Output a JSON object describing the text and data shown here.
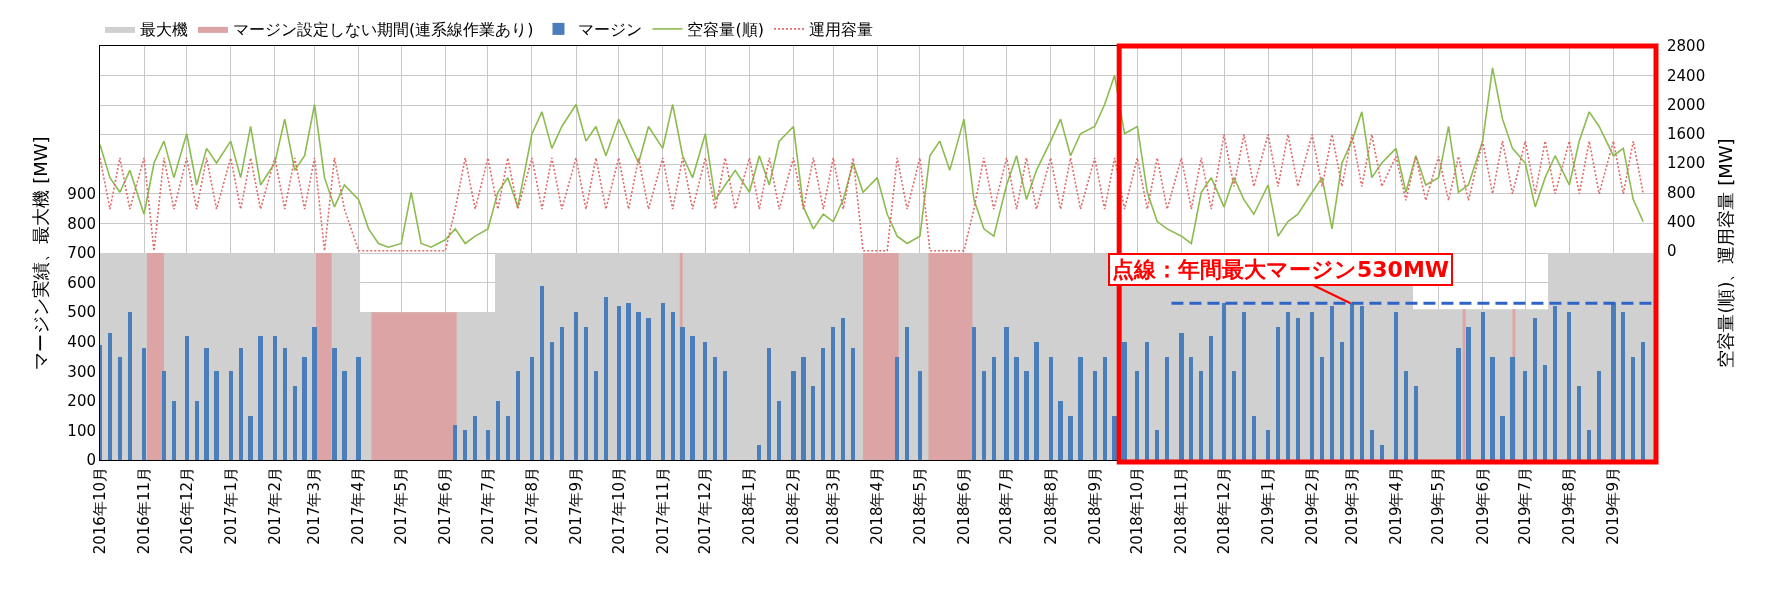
{
  "chart_data": {
    "type": "bar",
    "xlabel": null,
    "ylabel": "マージン実績、最大機 [MW]",
    "y2label": "空容量(順)、運用容量 [MW]",
    "xlim": [
      "2016-10-01",
      "2019-10-01"
    ],
    "xticks": [
      {
        "value": "2016-10-01",
        "label": "2016年10月"
      },
      {
        "value": "2016-11-01",
        "label": "2016年11月"
      },
      {
        "value": "2016-12-01",
        "label": "2016年12月"
      },
      {
        "value": "2017-01-01",
        "label": "2017年1月"
      },
      {
        "value": "2017-02-01",
        "label": "2017年2月"
      },
      {
        "value": "2017-03-01",
        "label": "2017年3月"
      },
      {
        "value": "2017-04-01",
        "label": "2017年4月"
      },
      {
        "value": "2017-05-01",
        "label": "2017年5月"
      },
      {
        "value": "2017-06-01",
        "label": "2017年6月"
      },
      {
        "value": "2017-07-01",
        "label": "2017年7月"
      },
      {
        "value": "2017-08-01",
        "label": "2017年8月"
      },
      {
        "value": "2017-09-01",
        "label": "2017年9月"
      },
      {
        "value": "2017-10-01",
        "label": "2017年10月"
      },
      {
        "value": "2017-11-01",
        "label": "2017年11月"
      },
      {
        "value": "2017-12-01",
        "label": "2017年12月"
      },
      {
        "value": "2018-01-01",
        "label": "2018年1月"
      },
      {
        "value": "2018-02-01",
        "label": "2018年2月"
      },
      {
        "value": "2018-03-01",
        "label": "2018年3月"
      },
      {
        "value": "2018-04-01",
        "label": "2018年4月"
      },
      {
        "value": "2018-05-01",
        "label": "2018年5月"
      },
      {
        "value": "2018-06-01",
        "label": "2018年6月"
      },
      {
        "value": "2018-07-01",
        "label": "2018年7月"
      },
      {
        "value": "2018-08-01",
        "label": "2018年8月"
      },
      {
        "value": "2018-09-01",
        "label": "2018年9月"
      },
      {
        "value": "2018-10-01",
        "label": "2018年10月"
      },
      {
        "value": "2018-11-01",
        "label": "2018年11月"
      },
      {
        "value": "2018-12-01",
        "label": "2018年12月"
      },
      {
        "value": "2019-01-01",
        "label": "2019年1月"
      },
      {
        "value": "2019-02-01",
        "label": "2019年2月"
      },
      {
        "value": "2019-03-01",
        "label": "2019年3月"
      },
      {
        "value": "2019-04-01",
        "label": "2019年4月"
      },
      {
        "value": "2019-05-01",
        "label": "2019年5月"
      },
      {
        "value": "2019-06-01",
        "label": "2019年6月"
      },
      {
        "value": "2019-07-01",
        "label": "2019年7月"
      },
      {
        "value": "2019-08-01",
        "label": "2019年8月"
      },
      {
        "value": "2019-09-01",
        "label": "2019年9月"
      }
    ],
    "ylim": [
      0,
      1400
    ],
    "yticks": [
      0,
      100,
      200,
      300,
      400,
      500,
      600,
      700,
      800,
      900,
      {
        "value": 1000,
        "label": null
      },
      {
        "value": 1100,
        "label": null
      },
      {
        "value": 1200,
        "label": null
      },
      {
        "value": 1300,
        "label": null
      },
      {
        "value": 1400,
        "label": null
      }
    ],
    "y2lim": [
      -2860,
      2800
    ],
    "y2ticks": [
      0,
      400,
      800,
      1200,
      1600,
      2000,
      2400,
      2800
    ],
    "grid": true,
    "legend": "top",
    "x": [
      "2016-10-01",
      "2016-10-08",
      "2016-10-15",
      "2016-10-22",
      "2016-11-01",
      "2016-11-08",
      "2016-11-15",
      "2016-11-22",
      "2016-12-01",
      "2016-12-08",
      "2016-12-15",
      "2016-12-22",
      "2017-01-01",
      "2017-01-08",
      "2017-01-15",
      "2017-01-22",
      "2017-02-01",
      "2017-02-08",
      "2017-02-15",
      "2017-02-22",
      "2017-03-01",
      "2017-03-08",
      "2017-03-15",
      "2017-03-22",
      "2017-04-01",
      "2017-04-08",
      "2017-04-15",
      "2017-04-22",
      "2017-05-01",
      "2017-05-08",
      "2017-05-15",
      "2017-05-22",
      "2017-06-01",
      "2017-06-08",
      "2017-06-15",
      "2017-06-22",
      "2017-07-01",
      "2017-07-08",
      "2017-07-15",
      "2017-07-22",
      "2017-08-01",
      "2017-08-08",
      "2017-08-15",
      "2017-08-22",
      "2017-09-01",
      "2017-09-08",
      "2017-09-15",
      "2017-09-22",
      "2017-10-01",
      "2017-10-08",
      "2017-10-15",
      "2017-10-22",
      "2017-11-01",
      "2017-11-08",
      "2017-11-15",
      "2017-11-22",
      "2017-12-01",
      "2017-12-08",
      "2017-12-15",
      "2017-12-22",
      "2018-01-01",
      "2018-01-08",
      "2018-01-15",
      "2018-01-22",
      "2018-02-01",
      "2018-02-08",
      "2018-02-15",
      "2018-02-22",
      "2018-03-01",
      "2018-03-08",
      "2018-03-15",
      "2018-03-22",
      "2018-04-01",
      "2018-04-08",
      "2018-04-15",
      "2018-04-22",
      "2018-05-01",
      "2018-05-08",
      "2018-05-15",
      "2018-05-22",
      "2018-06-01",
      "2018-06-08",
      "2018-06-15",
      "2018-06-22",
      "2018-07-01",
      "2018-07-08",
      "2018-07-15",
      "2018-07-22",
      "2018-08-01",
      "2018-08-08",
      "2018-08-15",
      "2018-08-22",
      "2018-09-01",
      "2018-09-08",
      "2018-09-15",
      "2018-09-22",
      "2018-10-01",
      "2018-10-08",
      "2018-10-15",
      "2018-10-22",
      "2018-11-01",
      "2018-11-08",
      "2018-11-15",
      "2018-11-22",
      "2018-12-01",
      "2018-12-08",
      "2018-12-15",
      "2018-12-22",
      "2019-01-01",
      "2019-01-08",
      "2019-01-15",
      "2019-01-22",
      "2019-02-01",
      "2019-02-08",
      "2019-02-15",
      "2019-02-22",
      "2019-03-01",
      "2019-03-08",
      "2019-03-15",
      "2019-03-22",
      "2019-04-01",
      "2019-04-08",
      "2019-04-15",
      "2019-04-22",
      "2019-05-01",
      "2019-05-08",
      "2019-05-15",
      "2019-05-22",
      "2019-06-01",
      "2019-06-08",
      "2019-06-15",
      "2019-06-22",
      "2019-07-01",
      "2019-07-08",
      "2019-07-15",
      "2019-07-22",
      "2019-08-01",
      "2019-08-08",
      "2019-08-15",
      "2019-08-22",
      "2019-09-01",
      "2019-09-08",
      "2019-09-15",
      "2019-09-22"
    ],
    "series": [
      {
        "name": "最大機",
        "type": "area",
        "color": "#d0d0d0",
        "x": [
          "2016-10-01",
          "2017-04-02",
          "2017-04-02",
          "2017-07-06",
          "2017-07-06",
          "2019-04-13",
          "2019-04-13",
          "2019-07-17",
          "2019-07-17",
          "2019-10-01"
        ],
        "values": [
          700,
          700,
          500,
          500,
          700,
          700,
          510,
          510,
          700,
          700
        ]
      },
      {
        "name": "マージン設定しない期間(連系線作業あり)",
        "type": "area",
        "color": "#dca4a4",
        "x": [
          "2016-11-03",
          "2016-11-15"
        ],
        "values": [
          700,
          700
        ]
      },
      {
        "type": "area",
        "color": "#dca4a4",
        "x": [
          "2017-03-02",
          "2017-03-13"
        ],
        "values": [
          700,
          700
        ]
      },
      {
        "type": "area",
        "color": "#dca4a4",
        "x": [
          "2017-04-10",
          "2017-06-09"
        ],
        "values": [
          500,
          500
        ]
      },
      {
        "type": "area",
        "color": "#dca4a4",
        "x": [
          "2017-11-13",
          "2017-11-15"
        ],
        "values": [
          700,
          700
        ]
      },
      {
        "type": "area",
        "color": "#dca4a4",
        "x": [
          "2018-03-22",
          "2018-04-16"
        ],
        "values": [
          700,
          700
        ]
      },
      {
        "type": "area",
        "color": "#dca4a4",
        "x": [
          "2018-05-07",
          "2018-06-07"
        ],
        "values": [
          700,
          700
        ]
      },
      {
        "type": "area",
        "color": "#dca4a4",
        "x": [
          "2019-05-18",
          "2019-05-20"
        ],
        "values": [
          510,
          510
        ]
      },
      {
        "type": "area",
        "color": "#dca4a4",
        "x": [
          "2019-06-22",
          "2019-06-24"
        ],
        "values": [
          510,
          510
        ]
      },
      {
        "name": "マージン",
        "color": "#4a7ebb",
        "values": [
          390,
          430,
          350,
          500,
          380,
          0,
          300,
          200,
          420,
          200,
          380,
          300,
          300,
          380,
          150,
          420,
          420,
          380,
          250,
          350,
          450,
          0,
          380,
          300,
          350,
          0,
          0,
          0,
          0,
          0,
          0,
          0,
          0,
          120,
          100,
          150,
          100,
          200,
          150,
          300,
          350,
          590,
          400,
          450,
          500,
          450,
          300,
          550,
          520,
          530,
          500,
          480,
          530,
          500,
          450,
          420,
          400,
          350,
          300,
          0,
          0,
          50,
          380,
          200,
          300,
          350,
          250,
          380,
          450,
          480,
          380,
          0,
          0,
          0,
          350,
          450,
          300,
          0,
          0,
          0,
          0,
          450,
          300,
          350,
          450,
          350,
          300,
          400,
          350,
          200,
          150,
          350,
          300,
          350,
          150,
          400,
          300,
          400,
          100,
          350,
          430,
          350,
          300,
          420,
          530,
          300,
          500,
          150,
          100,
          450,
          500,
          480,
          500,
          350,
          520,
          400,
          530,
          520,
          100,
          50,
          500,
          300,
          250,
          0,
          0,
          0,
          380,
          450,
          500,
          350,
          150,
          350,
          300,
          480,
          320,
          520,
          500,
          250,
          100,
          300,
          530,
          500,
          350,
          400
        ]
      },
      {
        "name": "空容量(順)",
        "type": "line",
        "axis": "y2",
        "color": "#8cbc50",
        "values": [
          1450,
          1000,
          800,
          1100,
          500,
          1200,
          1500,
          1000,
          1600,
          900,
          1400,
          1200,
          1500,
          1000,
          1700,
          900,
          1200,
          1800,
          1100,
          1300,
          2000,
          1000,
          600,
          900,
          700,
          300,
          100,
          50,
          100,
          800,
          100,
          50,
          150,
          300,
          100,
          200,
          300,
          800,
          1000,
          600,
          1600,
          1900,
          1400,
          1700,
          2000,
          1500,
          1700,
          1300,
          1800,
          1500,
          1200,
          1700,
          1400,
          2000,
          1300,
          1000,
          1600,
          700,
          900,
          1100,
          800,
          1300,
          900,
          1500,
          1700,
          600,
          300,
          500,
          400,
          700,
          1200,
          800,
          1000,
          500,
          200,
          100,
          200,
          1300,
          1500,
          1100,
          1800,
          700,
          300,
          200,
          900,
          1300,
          700,
          1100,
          1500,
          1800,
          1300,
          1600,
          1700,
          2000,
          2400,
          1600,
          1700,
          800,
          400,
          300,
          200,
          100,
          800,
          1000,
          600,
          1000,
          700,
          500,
          900,
          200,
          400,
          500,
          800,
          1000,
          300,
          1200,
          1500,
          1900,
          1000,
          1200,
          1400,
          800,
          1300,
          900,
          1000,
          1700,
          800,
          900,
          1500,
          2500,
          1800,
          1400,
          1200,
          600,
          1000,
          1300,
          900,
          1500,
          1900,
          1700,
          1300,
          1400,
          700,
          400
        ]
      },
      {
        "name": "運用容量",
        "type": "line",
        "axis": "y2",
        "color": "#e06a6a",
        "line_style": "dotted",
        "values": [
          1270,
          570,
          1270,
          570,
          1270,
          0,
          1270,
          570,
          1270,
          570,
          1270,
          570,
          1270,
          570,
          1270,
          570,
          1270,
          570,
          1270,
          570,
          1270,
          0,
          1270,
          570,
          0,
          0,
          0,
          0,
          0,
          0,
          0,
          0,
          0,
          570,
          1270,
          570,
          1270,
          570,
          1270,
          570,
          1270,
          570,
          1270,
          570,
          1270,
          570,
          1270,
          570,
          1270,
          570,
          1270,
          570,
          1270,
          570,
          1270,
          570,
          1270,
          570,
          1270,
          570,
          1270,
          570,
          1270,
          570,
          1270,
          570,
          1270,
          570,
          1270,
          570,
          1270,
          0,
          0,
          0,
          1270,
          570,
          1270,
          0,
          0,
          0,
          0,
          570,
          1270,
          570,
          1270,
          570,
          1270,
          570,
          1270,
          570,
          1270,
          570,
          1270,
          570,
          1270,
          570,
          1270,
          570,
          1270,
          570,
          1270,
          570,
          1270,
          570,
          1590,
          880,
          1590,
          880,
          1590,
          880,
          1590,
          880,
          1590,
          880,
          1590,
          880,
          1590,
          880,
          1590,
          880,
          1290,
          690,
          1290,
          690,
          1290,
          690,
          1290,
          690,
          1500,
          780,
          1500,
          780,
          1500,
          780,
          1500,
          780,
          1500,
          780,
          1500,
          780,
          1500,
          780,
          1500,
          780
        ]
      },
      {
        "type": "line",
        "color": "#2e64c8",
        "line_style": "dashed",
        "x": [
          "2018-10-25",
          "2019-09-30"
        ],
        "values": [
          530,
          530
        ]
      }
    ],
    "annotations": [
      {
        "text": "点線：年間最大マージン530MW",
        "x": "2019-02-28",
        "y": 530
      }
    ]
  }
}
